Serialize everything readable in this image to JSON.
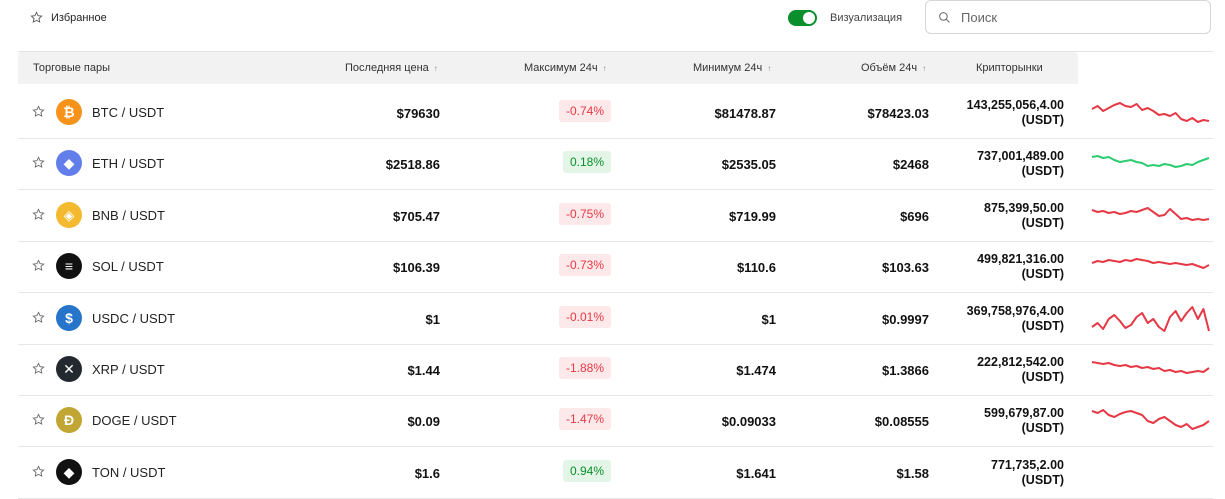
{
  "favorites_label": "Избранное",
  "visualization_label": "Визуализация",
  "search_placeholder": "Поиск",
  "headers": {
    "pairs": "Торговые пары",
    "last_price": "Последняя цена",
    "max24": "Максимум 24ч",
    "min24": "Минимум 24ч",
    "volume24": "Объём 24ч",
    "markets": "Крипторынки"
  },
  "colors": {
    "positive": "#0a8f2c",
    "negative": "#e53945",
    "sparkline_up": "#2ecc71",
    "sparkline_down": "#e53945"
  },
  "rows": [
    {
      "pair": "BTC / USDT",
      "icon": "bitcoin-icon",
      "icon_color": "#f7931a",
      "glyph": "₿",
      "last": "$79630",
      "change": "-0.74%",
      "dir": "neg",
      "min": "$81478.87",
      "vol": "$78423.03",
      "cap_main": "143,255,056,4.00",
      "cap_unit": "(USDT)",
      "spark": [
        12,
        9,
        14,
        11,
        8,
        6,
        9,
        10,
        7,
        13,
        11,
        14,
        18,
        17,
        19,
        16,
        22,
        24,
        21,
        25,
        23,
        24
      ]
    },
    {
      "pair": "ETH / USDT",
      "icon": "ethereum-icon",
      "icon_color": "#627eea",
      "glyph": "◆",
      "last": "$2518.86",
      "change": "0.18%",
      "dir": "pos",
      "min": "$2535.05",
      "vol": "$2468",
      "cap_main": "737,001,489.00",
      "cap_unit": "(USDT)",
      "spark": [
        9,
        8,
        10,
        9,
        12,
        14,
        13,
        12,
        14,
        15,
        18,
        17,
        18,
        16,
        17,
        19,
        18,
        16,
        17,
        14,
        12,
        10
      ]
    },
    {
      "pair": "BNB / USDT",
      "icon": "bnb-icon",
      "icon_color": "#f3ba2f",
      "glyph": "◈",
      "last": "$705.47",
      "change": "-0.75%",
      "dir": "neg",
      "min": "$719.99",
      "vol": "$696",
      "cap_main": "875,399,50.00",
      "cap_unit": "(USDT)",
      "spark": [
        10,
        12,
        11,
        13,
        12,
        14,
        13,
        11,
        12,
        10,
        8,
        12,
        16,
        15,
        9,
        14,
        19,
        18,
        20,
        19,
        20,
        19
      ]
    },
    {
      "pair": "SOL / USDT",
      "icon": "solana-icon",
      "icon_color": "#111111",
      "glyph": "≡",
      "last": "$106.39",
      "change": "-0.73%",
      "dir": "neg",
      "min": "$110.6",
      "vol": "$103.63",
      "cap_main": "499,821,316.00",
      "cap_unit": "(USDT)",
      "spark": [
        12,
        10,
        11,
        9,
        10,
        11,
        9,
        10,
        8,
        9,
        10,
        12,
        11,
        12,
        13,
        12,
        13,
        14,
        13,
        15,
        17,
        14
      ]
    },
    {
      "pair": "USDC / USDT",
      "icon": "usdc-icon",
      "icon_color": "#2775ca",
      "glyph": "$",
      "last": "$1",
      "change": "-0.01%",
      "dir": "neg",
      "min": "$1",
      "vol": "$0.9997",
      "cap_main": "369,758,976,4.00",
      "cap_unit": "(USDT)",
      "spark": [
        24,
        20,
        26,
        16,
        12,
        18,
        25,
        22,
        14,
        10,
        20,
        16,
        24,
        28,
        14,
        8,
        18,
        10,
        4,
        16,
        6,
        28
      ]
    },
    {
      "pair": "XRP / USDT",
      "icon": "xrp-icon",
      "icon_color": "#23292f",
      "glyph": "✕",
      "last": "$1.44",
      "change": "-1.88%",
      "dir": "neg",
      "min": "$1.474",
      "vol": "$1.3866",
      "cap_main": "222,812,542.00",
      "cap_unit": "(USDT)",
      "spark": [
        8,
        9,
        10,
        9,
        11,
        12,
        11,
        13,
        12,
        14,
        13,
        15,
        14,
        17,
        16,
        18,
        17,
        19,
        18,
        17,
        18,
        14
      ]
    },
    {
      "pair": "DOGE / USDT",
      "icon": "dogecoin-icon",
      "icon_color": "#c2a633",
      "glyph": "Ð",
      "last": "$0.09",
      "change": "-1.47%",
      "dir": "neg",
      "min": "$0.09033",
      "vol": "$0.08555",
      "cap_main": "599,679,87.00",
      "cap_unit": "(USDT)",
      "spark": [
        6,
        8,
        5,
        10,
        12,
        9,
        7,
        6,
        8,
        10,
        16,
        18,
        14,
        12,
        16,
        20,
        22,
        19,
        24,
        22,
        20,
        16
      ]
    },
    {
      "pair": "TON / USDT",
      "icon": "ton-icon",
      "icon_color": "#111111",
      "glyph": "◆",
      "last": "$1.6",
      "change": "0.94%",
      "dir": "pos",
      "min": "$1.641",
      "vol": "$1.58",
      "cap_main": "771,735,2.00",
      "cap_unit": "(USDT)",
      "spark": []
    }
  ]
}
